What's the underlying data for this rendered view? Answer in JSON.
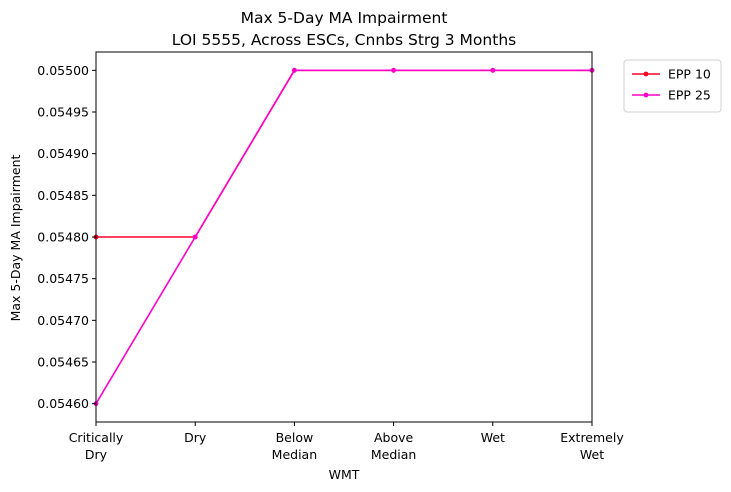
{
  "chart_data": {
    "type": "line",
    "title": "Max 5-Day MA Impairment",
    "subtitle": "LOI 5555, Across ESCs, Cnnbs Strg 3 Months",
    "xlabel": "WMT",
    "ylabel": "Max 5-Day MA Impairment",
    "categories": [
      [
        "Critically",
        "Dry"
      ],
      [
        "Dry"
      ],
      [
        "Below",
        "Median"
      ],
      [
        "Above",
        "Median"
      ],
      [
        "Wet"
      ],
      [
        "Extremely",
        "Wet"
      ]
    ],
    "yticks": [
      "0.05460",
      "0.05465",
      "0.05470",
      "0.05475",
      "0.05480",
      "0.05485",
      "0.05490",
      "0.05495",
      "0.05500"
    ],
    "ylim": [
      0.054578,
      0.055022
    ],
    "grid": false,
    "legend_position": "outside-top-right",
    "series": [
      {
        "name": "EPP 10",
        "color": "#ff0028",
        "values": [
          0.0548,
          0.0548,
          0.055,
          0.055,
          0.055,
          0.055
        ]
      },
      {
        "name": "EPP 25",
        "color": "#ff00c8",
        "values": [
          0.0546,
          0.0548,
          0.055,
          0.055,
          0.055,
          0.055
        ]
      }
    ]
  }
}
